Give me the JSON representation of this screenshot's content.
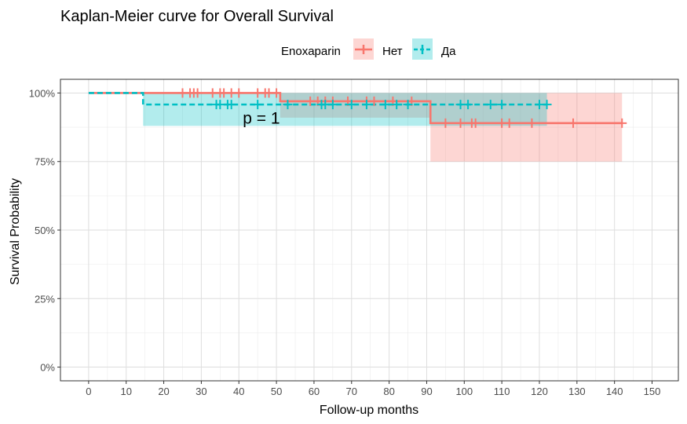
{
  "chart_data": {
    "type": "line",
    "title": "Kaplan-Meier curve for Overall Survival",
    "xlabel": "Follow-up months",
    "ylabel": "Survival Probability",
    "xlim": [
      -7.5,
      157
    ],
    "ylim": [
      -0.05,
      1.05
    ],
    "x_ticks": [
      0,
      10,
      20,
      30,
      40,
      50,
      60,
      70,
      80,
      90,
      100,
      110,
      120,
      130,
      140,
      150
    ],
    "x_tick_labels": [
      "0",
      "10",
      "20",
      "30",
      "40",
      "50",
      "60",
      "70",
      "80",
      "90",
      "100",
      "110",
      "120",
      "130",
      "140",
      "150"
    ],
    "y_ticks": [
      0,
      0.25,
      0.5,
      0.75,
      1.0
    ],
    "y_tick_labels": [
      "0%",
      "25%",
      "50%",
      "75%",
      "100%"
    ],
    "grid": true,
    "legend": {
      "title": "Enoxaparin",
      "position": "top"
    },
    "annotation": {
      "text": "p = 1",
      "x": 46,
      "y": 0.9
    },
    "series": [
      {
        "name": "Нет",
        "color": "#F8766D",
        "fill": "#F8766D",
        "dash": "solid",
        "steps": [
          [
            0,
            1.0
          ],
          [
            51,
            0.97
          ],
          [
            91,
            0.89
          ],
          [
            142,
            0.89
          ]
        ],
        "ci": [
          {
            "x0": 0,
            "x1": 51,
            "lo": 1.0,
            "hi": 1.0
          },
          {
            "x0": 51,
            "x1": 91,
            "lo": 0.91,
            "hi": 1.0
          },
          {
            "x0": 91,
            "x1": 142,
            "lo": 0.75,
            "hi": 1.0
          }
        ],
        "censor_x": [
          25,
          27,
          28,
          29,
          33,
          35,
          36,
          38,
          40,
          45,
          47,
          48,
          50,
          59,
          61,
          63,
          65,
          69,
          74,
          76,
          81,
          86,
          95,
          99,
          102,
          103,
          110,
          112,
          118,
          129,
          142
        ]
      },
      {
        "name": "Да",
        "color": "#00BFC4",
        "fill": "#00BFC4",
        "dash": "dashed",
        "steps": [
          [
            0,
            1.0
          ],
          [
            14.5,
            0.958
          ],
          [
            122,
            0.958
          ]
        ],
        "ci": [
          {
            "x0": 0,
            "x1": 14.5,
            "lo": 1.0,
            "hi": 1.0
          },
          {
            "x0": 14.5,
            "x1": 122,
            "lo": 0.88,
            "hi": 1.0
          }
        ],
        "censor_x": [
          34,
          35,
          37,
          38,
          45,
          53,
          62,
          63,
          65,
          70,
          74,
          79,
          82,
          85,
          99,
          101,
          107,
          110,
          120,
          122
        ]
      }
    ]
  }
}
